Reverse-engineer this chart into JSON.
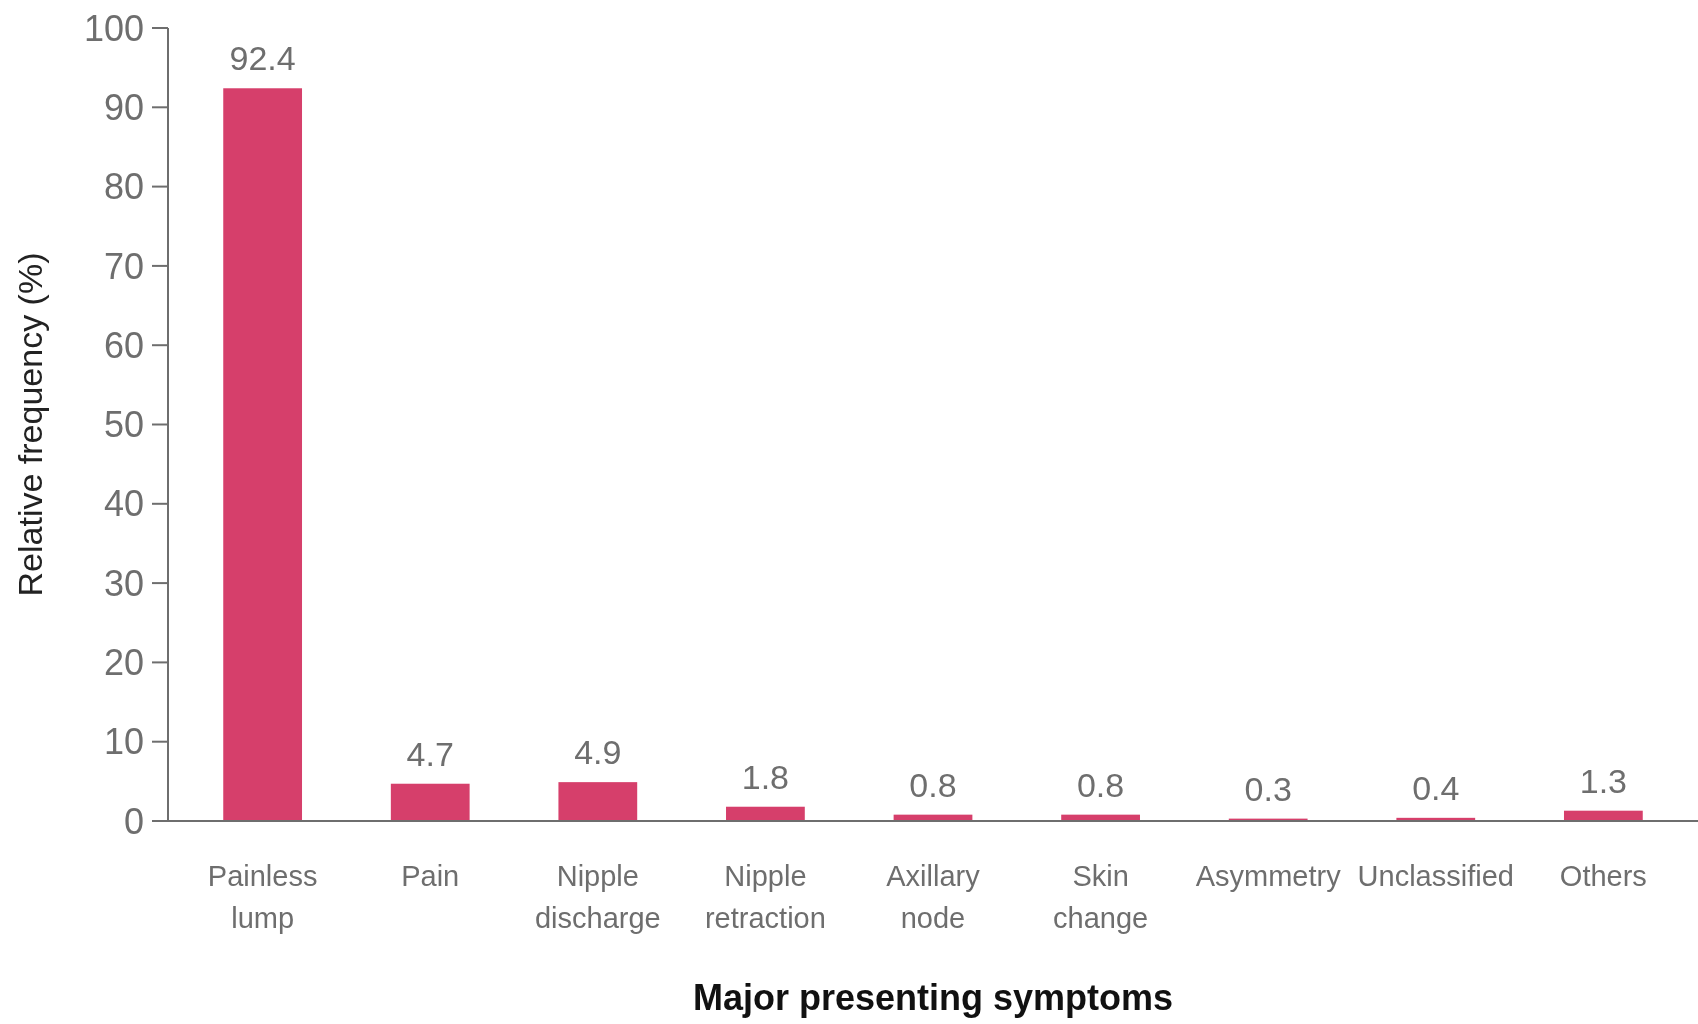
{
  "chart_data": {
    "type": "bar",
    "xlabel": "Major presenting symptoms",
    "ylabel": "Relative frequency (%)",
    "categories": [
      "Painless lump",
      "Pain",
      "Nipple discharge",
      "Nipple retraction",
      "Axillary node",
      "Skin change",
      "Asymmetry",
      "Unclassified",
      "Others"
    ],
    "values": [
      92.4,
      4.7,
      4.9,
      1.8,
      0.8,
      0.8,
      0.3,
      0.4,
      1.3
    ],
    "color": "#d63f6b",
    "ylim": [
      0,
      100
    ],
    "yticks": [
      0,
      10,
      20,
      30,
      40,
      50,
      60,
      70,
      80,
      90,
      100
    ],
    "data_labels": true
  }
}
